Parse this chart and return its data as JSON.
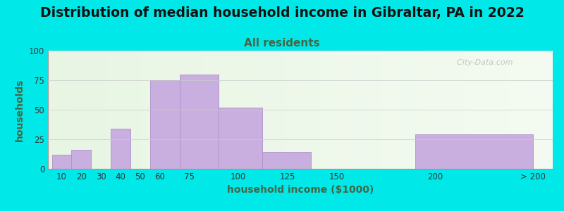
{
  "title": "Distribution of median household income in Gibraltar, PA in 2022",
  "subtitle": "All residents",
  "xlabel": "household income ($1000)",
  "ylabel": "households",
  "bar_values": [
    12,
    16,
    0,
    34,
    0,
    75,
    80,
    52,
    14,
    0,
    29
  ],
  "bar_lefts": [
    5,
    15,
    25,
    35,
    45,
    55,
    70,
    90,
    112,
    137,
    190
  ],
  "bar_widths": [
    10,
    10,
    10,
    10,
    10,
    15,
    20,
    22,
    25,
    25,
    60
  ],
  "tick_positions": [
    10,
    20,
    30,
    40,
    50,
    60,
    75,
    100,
    125,
    150,
    200,
    250
  ],
  "tick_labels": [
    "10",
    "20",
    "30",
    "40",
    "50",
    "60",
    "75",
    "100",
    "125",
    "150",
    "200",
    "> 200"
  ],
  "bar_color": "#c9aee0",
  "bar_edgecolor": "#b090cc",
  "ylim": [
    0,
    100
  ],
  "yticks": [
    0,
    25,
    50,
    75,
    100
  ],
  "xlim": [
    3,
    260
  ],
  "outer_bg": "#00e8e8",
  "title_fontsize": 13.5,
  "subtitle_fontsize": 11,
  "axis_label_fontsize": 10,
  "tick_fontsize": 8.5,
  "title_color": "#111111",
  "subtitle_color": "#446644",
  "axis_label_color": "#446644",
  "watermark": "  City-Data.com",
  "watermark_color": "#bbbbbb"
}
